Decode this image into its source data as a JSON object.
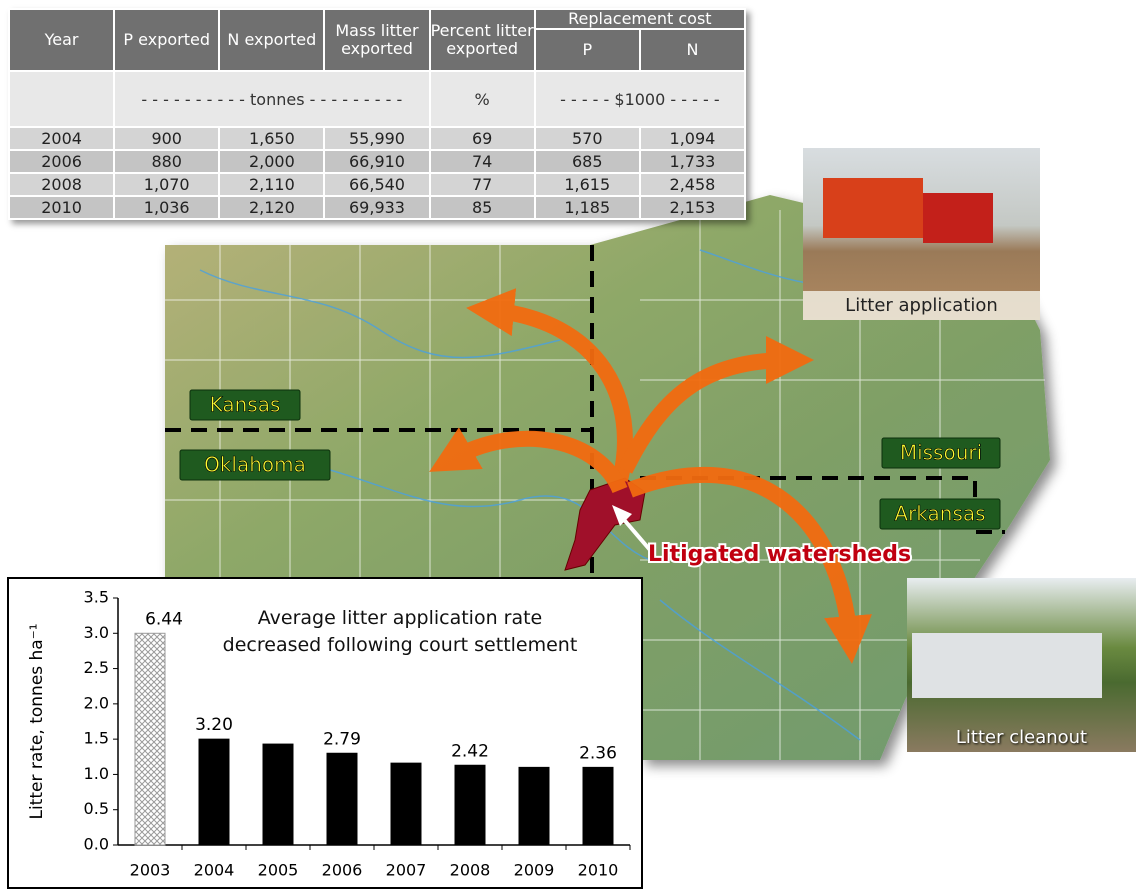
{
  "table": {
    "headers": [
      "Year",
      "P exported",
      "N exported",
      "Mass litter exported",
      "Percent litter exported"
    ],
    "group_header": "Replacement cost",
    "sub_headers": [
      "P",
      "N"
    ],
    "units": [
      "- - - - - - - - - - tonnes - - - - - - - - -",
      "%",
      "- - - - - $1000 - - - - -"
    ],
    "rows": [
      [
        "2004",
        "900",
        "1,650",
        "55,990",
        "69",
        "570",
        "1,094"
      ],
      [
        "2006",
        "880",
        "2,000",
        "66,910",
        "74",
        "685",
        "1,733"
      ],
      [
        "2008",
        "1,070",
        "2,110",
        "66,540",
        "77",
        "1,615",
        "2,458"
      ],
      [
        "2010",
        "1,036",
        "2,120",
        "69,933",
        "85",
        "1,185",
        "2,153"
      ]
    ]
  },
  "map": {
    "labels": [
      "Kansas",
      "Oklahoma",
      "Missouri",
      "Arkansas"
    ],
    "callout": "Litigated watersheds"
  },
  "photos": [
    "Litter application",
    "Litter cleanout"
  ],
  "chart_data": {
    "type": "bar",
    "title": "Average litter application rate decreased following court settlement",
    "y_label": "Litter rate, tonnes ha⁻¹",
    "categories": [
      "2003",
      "2004",
      "2005",
      "2006",
      "2007",
      "2008",
      "2009",
      "2010"
    ],
    "values": [
      3.0,
      1.5,
      1.43,
      1.3,
      1.16,
      1.13,
      1.1,
      1.1
    ],
    "bar_labels": [
      "6.44",
      "3.20",
      null,
      "2.79",
      null,
      "2.42",
      null,
      "2.36"
    ],
    "colors": [
      "#9a9a9a",
      "#000000",
      "#000000",
      "#000000",
      "#000000",
      "#000000",
      "#000000",
      "#000000"
    ],
    "hatched": [
      true,
      false,
      false,
      false,
      false,
      false,
      false,
      false
    ],
    "ylim": [
      0,
      3.5
    ],
    "yticks": [
      {
        "value": 0,
        "label": "0.0"
      },
      {
        "value": 0.5,
        "label": "0.5"
      },
      {
        "value": 1,
        "label": "1.0"
      },
      {
        "value": 1.5,
        "label": "1.5"
      },
      {
        "value": 2,
        "label": "2.0"
      },
      {
        "value": 2.5,
        "label": "2.5"
      },
      {
        "value": 3,
        "label": "3.0"
      },
      {
        "value": 3.5,
        "label": "3.5"
      }
    ],
    "grid": false
  }
}
